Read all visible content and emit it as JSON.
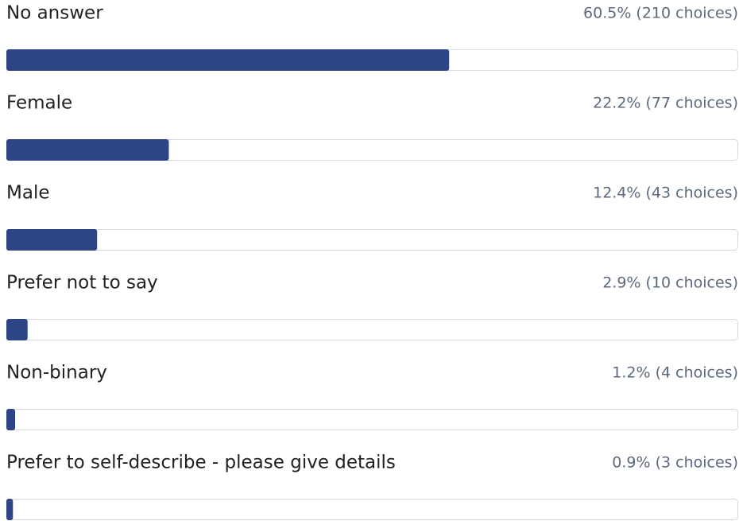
{
  "chart_data": {
    "type": "bar",
    "categories": [
      "No answer",
      "Female",
      "Male",
      "Prefer not to say",
      "Non-binary",
      "Prefer to self-describe - please give details"
    ],
    "values": [
      60.5,
      22.2,
      12.4,
      2.9,
      1.2,
      0.9
    ],
    "value_labels": [
      "60.5% (210 choices)",
      "22.2% (77 choices)",
      "12.4% (43 choices)",
      "2.9% (10 choices)",
      "1.2% (4 choices)",
      "0.9% (3 choices)"
    ],
    "xlim": [
      0,
      100
    ],
    "color": "#2d4486"
  }
}
